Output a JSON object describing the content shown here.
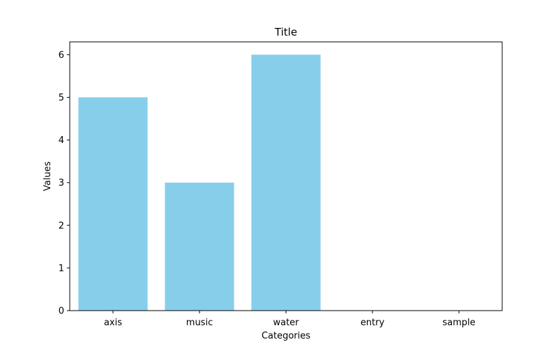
{
  "chart_data": {
    "type": "bar",
    "title": "Title",
    "xlabel": "Categories",
    "ylabel": "Values",
    "categories": [
      "axis",
      "music",
      "water",
      "entry",
      "sample"
    ],
    "values": [
      5,
      3,
      6,
      0,
      0
    ],
    "ylim": [
      0,
      6.3
    ],
    "yticks": [
      0,
      1,
      2,
      3,
      4,
      5,
      6
    ],
    "bar_color": "#87ceeb",
    "grid": false,
    "legend": "none"
  }
}
